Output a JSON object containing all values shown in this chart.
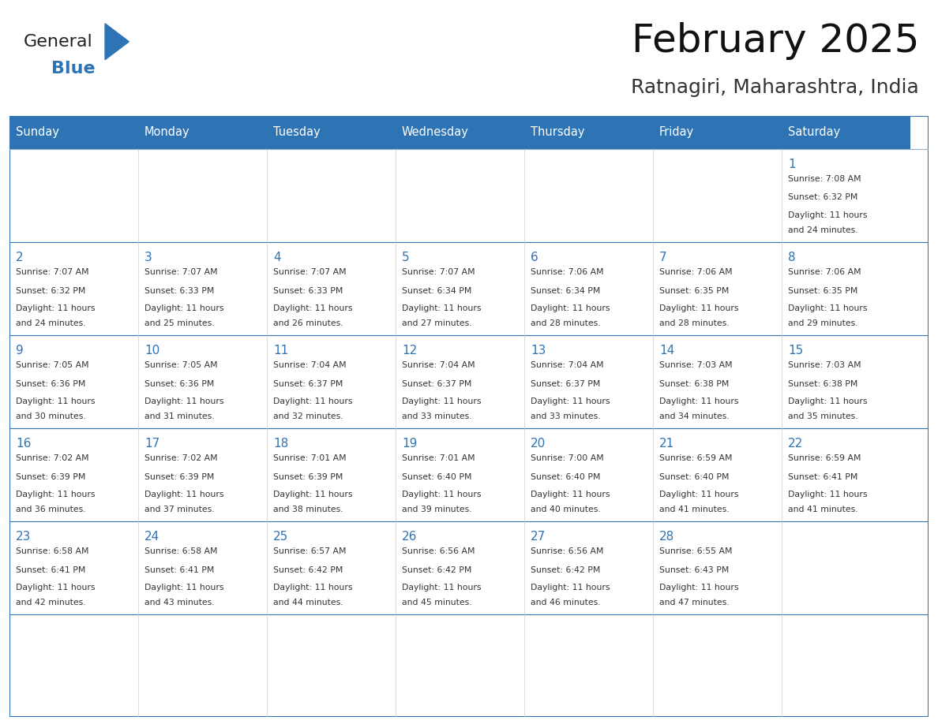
{
  "title": "February 2025",
  "subtitle": "Ratnagiri, Maharashtra, India",
  "header_bg": "#2E74B5",
  "header_text_color": "#FFFFFF",
  "cell_bg_even": "#FFFFFF",
  "cell_bg_odd": "#F2F2F2",
  "border_color": "#2E74B5",
  "day_number_color": "#2E74B5",
  "text_color": "#333333",
  "days_of_week": [
    "Sunday",
    "Monday",
    "Tuesday",
    "Wednesday",
    "Thursday",
    "Friday",
    "Saturday"
  ],
  "weeks": [
    [
      {
        "day": null,
        "sunrise": null,
        "sunset": null,
        "daylight": null
      },
      {
        "day": null,
        "sunrise": null,
        "sunset": null,
        "daylight": null
      },
      {
        "day": null,
        "sunrise": null,
        "sunset": null,
        "daylight": null
      },
      {
        "day": null,
        "sunrise": null,
        "sunset": null,
        "daylight": null
      },
      {
        "day": null,
        "sunrise": null,
        "sunset": null,
        "daylight": null
      },
      {
        "day": null,
        "sunrise": null,
        "sunset": null,
        "daylight": null
      },
      {
        "day": 1,
        "sunrise": "7:08 AM",
        "sunset": "6:32 PM",
        "daylight": "11 hours and 24 minutes."
      }
    ],
    [
      {
        "day": 2,
        "sunrise": "7:07 AM",
        "sunset": "6:32 PM",
        "daylight": "11 hours and 24 minutes."
      },
      {
        "day": 3,
        "sunrise": "7:07 AM",
        "sunset": "6:33 PM",
        "daylight": "11 hours and 25 minutes."
      },
      {
        "day": 4,
        "sunrise": "7:07 AM",
        "sunset": "6:33 PM",
        "daylight": "11 hours and 26 minutes."
      },
      {
        "day": 5,
        "sunrise": "7:07 AM",
        "sunset": "6:34 PM",
        "daylight": "11 hours and 27 minutes."
      },
      {
        "day": 6,
        "sunrise": "7:06 AM",
        "sunset": "6:34 PM",
        "daylight": "11 hours and 28 minutes."
      },
      {
        "day": 7,
        "sunrise": "7:06 AM",
        "sunset": "6:35 PM",
        "daylight": "11 hours and 28 minutes."
      },
      {
        "day": 8,
        "sunrise": "7:06 AM",
        "sunset": "6:35 PM",
        "daylight": "11 hours and 29 minutes."
      }
    ],
    [
      {
        "day": 9,
        "sunrise": "7:05 AM",
        "sunset": "6:36 PM",
        "daylight": "11 hours and 30 minutes."
      },
      {
        "day": 10,
        "sunrise": "7:05 AM",
        "sunset": "6:36 PM",
        "daylight": "11 hours and 31 minutes."
      },
      {
        "day": 11,
        "sunrise": "7:04 AM",
        "sunset": "6:37 PM",
        "daylight": "11 hours and 32 minutes."
      },
      {
        "day": 12,
        "sunrise": "7:04 AM",
        "sunset": "6:37 PM",
        "daylight": "11 hours and 33 minutes."
      },
      {
        "day": 13,
        "sunrise": "7:04 AM",
        "sunset": "6:37 PM",
        "daylight": "11 hours and 33 minutes."
      },
      {
        "day": 14,
        "sunrise": "7:03 AM",
        "sunset": "6:38 PM",
        "daylight": "11 hours and 34 minutes."
      },
      {
        "day": 15,
        "sunrise": "7:03 AM",
        "sunset": "6:38 PM",
        "daylight": "11 hours and 35 minutes."
      }
    ],
    [
      {
        "day": 16,
        "sunrise": "7:02 AM",
        "sunset": "6:39 PM",
        "daylight": "11 hours and 36 minutes."
      },
      {
        "day": 17,
        "sunrise": "7:02 AM",
        "sunset": "6:39 PM",
        "daylight": "11 hours and 37 minutes."
      },
      {
        "day": 18,
        "sunrise": "7:01 AM",
        "sunset": "6:39 PM",
        "daylight": "11 hours and 38 minutes."
      },
      {
        "day": 19,
        "sunrise": "7:01 AM",
        "sunset": "6:40 PM",
        "daylight": "11 hours and 39 minutes."
      },
      {
        "day": 20,
        "sunrise": "7:00 AM",
        "sunset": "6:40 PM",
        "daylight": "11 hours and 40 minutes."
      },
      {
        "day": 21,
        "sunrise": "6:59 AM",
        "sunset": "6:40 PM",
        "daylight": "11 hours and 41 minutes."
      },
      {
        "day": 22,
        "sunrise": "6:59 AM",
        "sunset": "6:41 PM",
        "daylight": "11 hours and 41 minutes."
      }
    ],
    [
      {
        "day": 23,
        "sunrise": "6:58 AM",
        "sunset": "6:41 PM",
        "daylight": "11 hours and 42 minutes."
      },
      {
        "day": 24,
        "sunrise": "6:58 AM",
        "sunset": "6:41 PM",
        "daylight": "11 hours and 43 minutes."
      },
      {
        "day": 25,
        "sunrise": "6:57 AM",
        "sunset": "6:42 PM",
        "daylight": "11 hours and 44 minutes."
      },
      {
        "day": 26,
        "sunrise": "6:56 AM",
        "sunset": "6:42 PM",
        "daylight": "11 hours and 45 minutes."
      },
      {
        "day": 27,
        "sunrise": "6:56 AM",
        "sunset": "6:42 PM",
        "daylight": "11 hours and 46 minutes."
      },
      {
        "day": 28,
        "sunrise": "6:55 AM",
        "sunset": "6:43 PM",
        "daylight": "11 hours and 47 minutes."
      },
      {
        "day": null,
        "sunrise": null,
        "sunset": null,
        "daylight": null
      }
    ]
  ],
  "logo_text_general": "General",
  "logo_text_blue": "Blue",
  "logo_color_general": "#222222",
  "logo_color_blue": "#2E74B5",
  "logo_triangle_color": "#2E74B5"
}
